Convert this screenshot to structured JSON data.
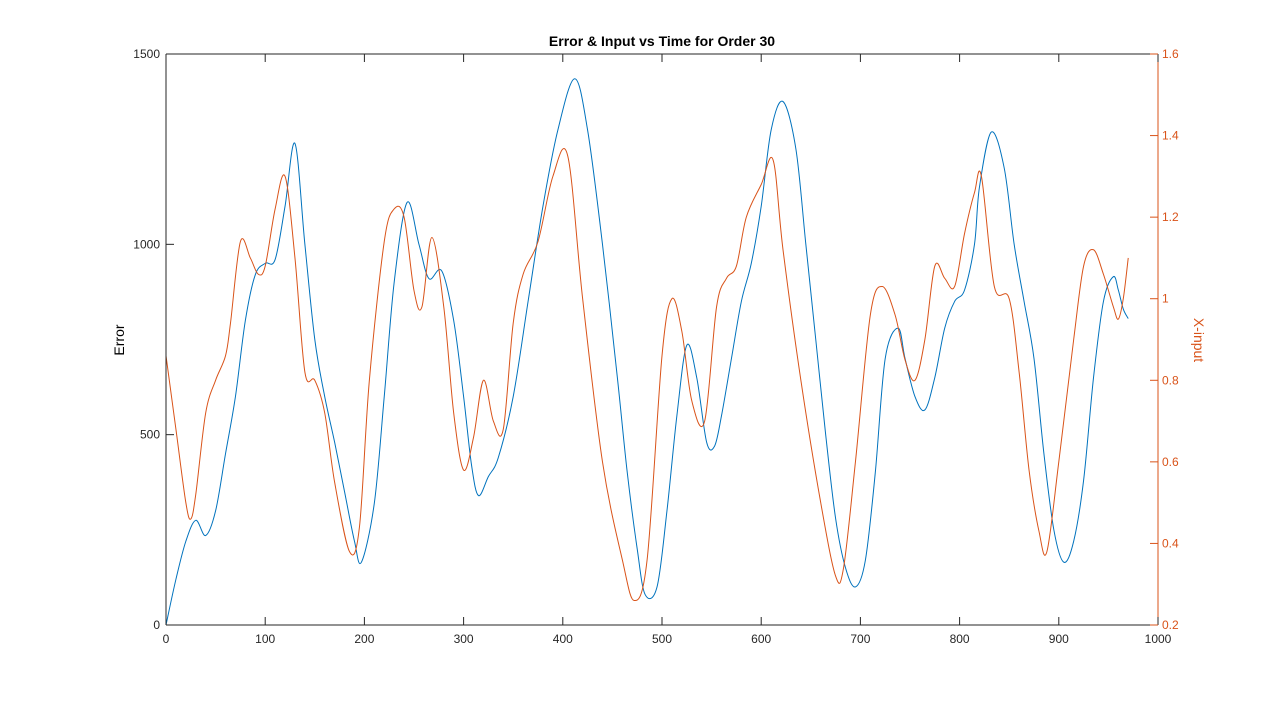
{
  "chart_data": {
    "type": "line",
    "title": "Error & Input vs Time for Order 30",
    "xlabel": "",
    "ylabel": "Error",
    "y2label": "X-input",
    "xlim": [
      0,
      1000
    ],
    "ylim": [
      0,
      1500
    ],
    "y2lim": [
      0.2,
      1.6
    ],
    "xticks": [
      0,
      100,
      200,
      300,
      400,
      500,
      600,
      700,
      800,
      900,
      1000
    ],
    "yticks": [
      0,
      500,
      1000,
      1500
    ],
    "y2ticks": [
      0.2,
      0.4,
      0.6,
      0.8,
      1,
      1.2,
      1.4,
      1.6
    ],
    "grid": false,
    "colors": {
      "series1": "#0072BD",
      "series2": "#D95319",
      "axis": "#262626"
    },
    "series": [
      {
        "axis": "left",
        "x": [
          0,
          10,
          20,
          30,
          40,
          50,
          60,
          70,
          80,
          90,
          100,
          110,
          120,
          130,
          140,
          150,
          160,
          170,
          180,
          190,
          197,
          210,
          220,
          230,
          243,
          255,
          265,
          278,
          290,
          300,
          308,
          315,
          325,
          335,
          350,
          365,
          380,
          395,
          412,
          425,
          440,
          455,
          465,
          475,
          483,
          495,
          505,
          515,
          525,
          535,
          545,
          553,
          560,
          570,
          580,
          590,
          600,
          610,
          622,
          635,
          645,
          655,
          665,
          675,
          685,
          695,
          705,
          715,
          725,
          738,
          745,
          755,
          765,
          775,
          785,
          795,
          805,
          815,
          820,
          832,
          845,
          855,
          865,
          875,
          885,
          895,
          905,
          915,
          925,
          935,
          945,
          955,
          960,
          965,
          970
        ],
        "values": [
          0,
          120,
          220,
          275,
          235,
          300,
          450,
          600,
          800,
          920,
          950,
          960,
          1100,
          1265,
          1000,
          750,
          600,
          480,
          350,
          220,
          165,
          320,
          600,
          900,
          1110,
          1000,
          910,
          930,
          800,
          600,
          420,
          340,
          390,
          440,
          600,
          850,
          1100,
          1300,
          1435,
          1300,
          1000,
          650,
          400,
          200,
          80,
          100,
          300,
          550,
          735,
          650,
          480,
          470,
          550,
          700,
          850,
          950,
          1100,
          1300,
          1375,
          1250,
          1000,
          750,
          500,
          280,
          150,
          100,
          170,
          400,
          700,
          780,
          700,
          600,
          565,
          650,
          780,
          850,
          880,
          1000,
          1150,
          1295,
          1200,
          1000,
          850,
          700,
          450,
          250,
          165,
          220,
          380,
          650,
          850,
          915,
          880,
          830,
          805
        ]
      },
      {
        "axis": "right",
        "x": [
          0,
          10,
          20,
          25,
          30,
          40,
          50,
          60,
          65,
          75,
          85,
          93,
          100,
          110,
          120,
          130,
          140,
          150,
          160,
          170,
          185,
          195,
          205,
          220,
          230,
          240,
          250,
          258,
          268,
          280,
          290,
          300,
          310,
          320,
          330,
          340,
          350,
          360,
          375,
          390,
          405,
          420,
          440,
          460,
          472,
          485,
          500,
          510,
          520,
          530,
          543,
          555,
          565,
          575,
          585,
          600,
          612,
          622,
          640,
          660,
          675,
          683,
          695,
          710,
          722,
          735,
          745,
          755,
          765,
          775,
          785,
          795,
          805,
          815,
          822,
          835,
          850,
          860,
          870,
          880,
          888,
          900,
          915,
          925,
          935,
          945,
          955,
          960,
          965,
          970
        ],
        "values": [
          0.86,
          0.68,
          0.5,
          0.46,
          0.52,
          0.72,
          0.8,
          0.86,
          0.94,
          1.14,
          1.1,
          1.06,
          1.08,
          1.22,
          1.3,
          1.1,
          0.82,
          0.8,
          0.72,
          0.55,
          0.38,
          0.44,
          0.8,
          1.14,
          1.22,
          1.2,
          1.02,
          0.98,
          1.15,
          0.98,
          0.72,
          0.58,
          0.66,
          0.8,
          0.7,
          0.68,
          0.94,
          1.06,
          1.14,
          1.3,
          1.35,
          1.0,
          0.6,
          0.36,
          0.26,
          0.36,
          0.86,
          1.0,
          0.92,
          0.75,
          0.7,
          0.98,
          1.05,
          1.08,
          1.2,
          1.28,
          1.34,
          1.12,
          0.8,
          0.5,
          0.32,
          0.34,
          0.6,
          0.96,
          1.03,
          0.96,
          0.85,
          0.8,
          0.9,
          1.08,
          1.05,
          1.03,
          1.16,
          1.26,
          1.3,
          1.03,
          1.0,
          0.82,
          0.58,
          0.43,
          0.38,
          0.6,
          0.9,
          1.08,
          1.12,
          1.06,
          0.98,
          0.95,
          1.0,
          1.1
        ]
      }
    ]
  }
}
